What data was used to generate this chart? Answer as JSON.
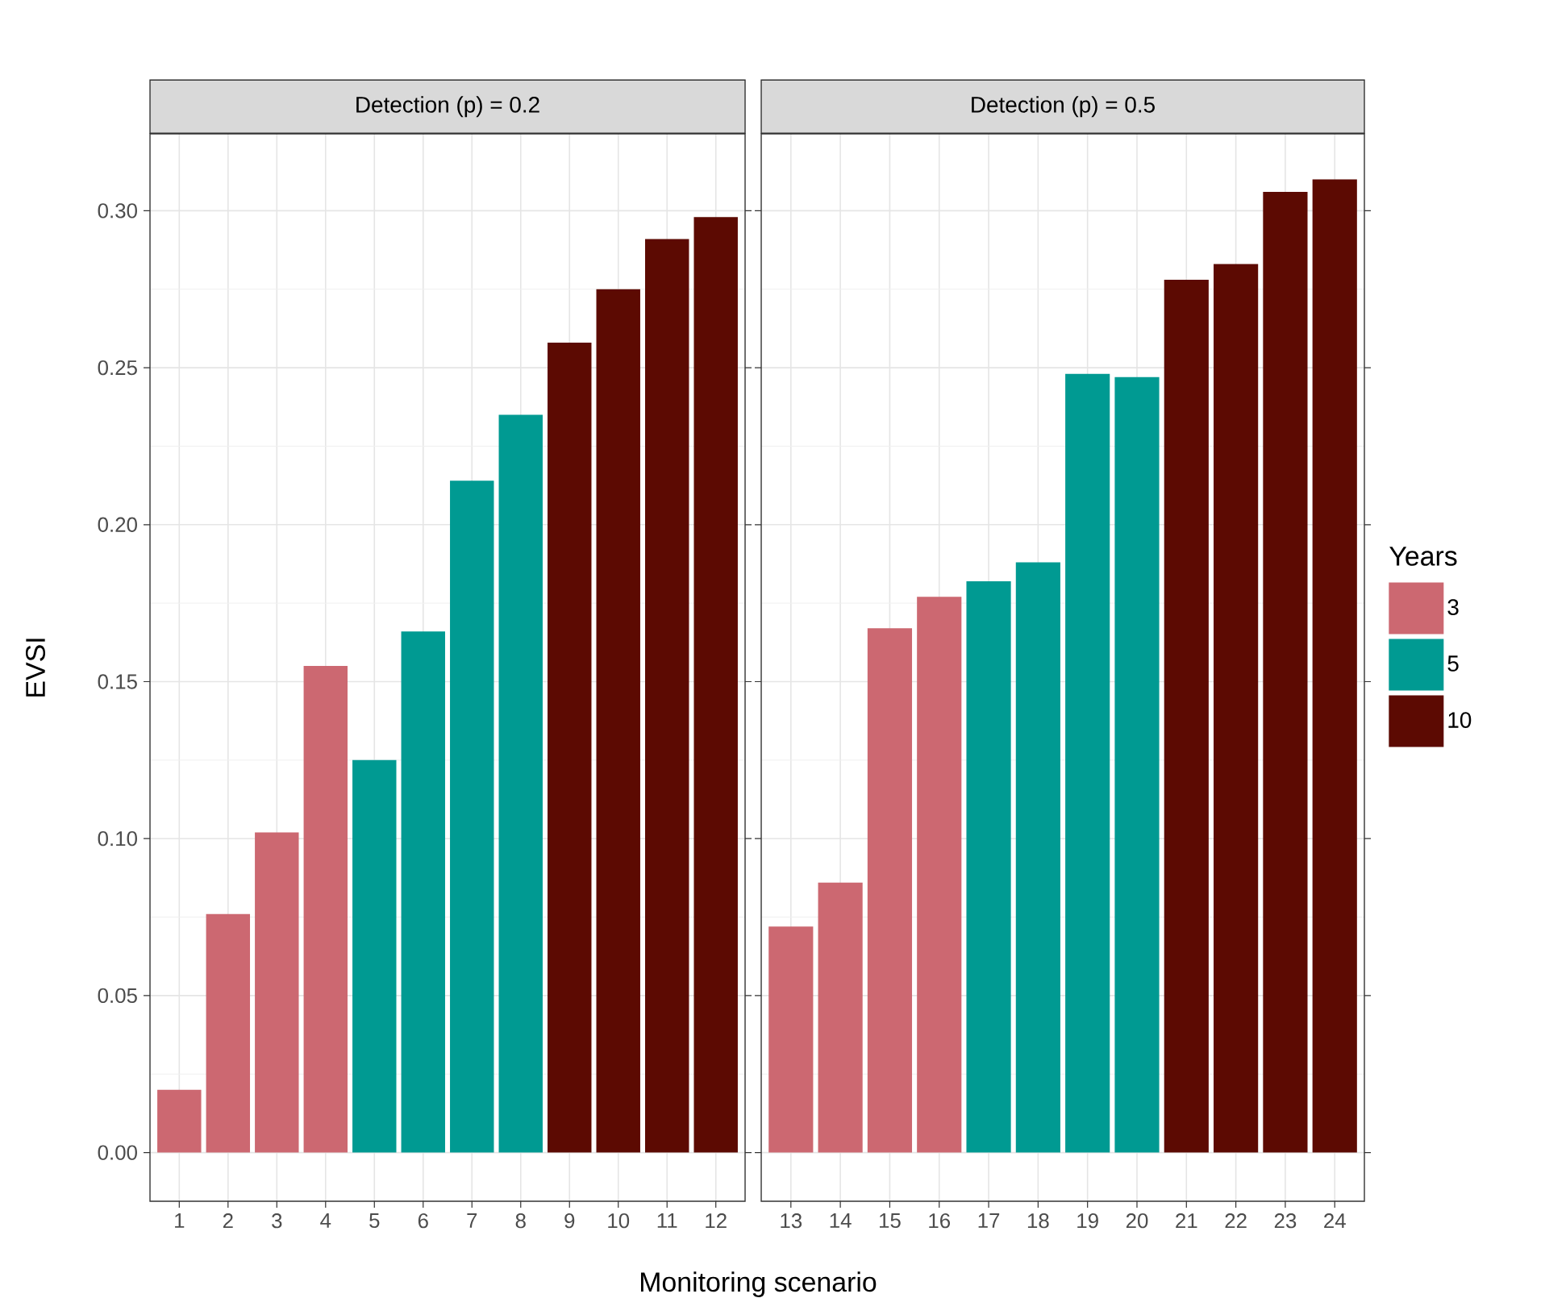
{
  "chart_data": [
    {
      "type": "bar",
      "title": "Detection (p) = 0.2",
      "xlabel": "Monitoring scenario",
      "ylabel": "EVSI",
      "categories": [
        "1",
        "2",
        "3",
        "4",
        "5",
        "6",
        "7",
        "8",
        "9",
        "10",
        "11",
        "12"
      ],
      "series": [
        {
          "color": "#cc6871",
          "values": [
            0.02,
            0.076,
            0.102,
            0.155,
            null,
            null,
            null,
            null,
            null,
            null,
            null,
            null
          ]
        },
        {
          "color": "#009a92",
          "values": [
            null,
            null,
            null,
            null,
            0.125,
            0.166,
            0.214,
            0.235,
            null,
            null,
            null,
            null
          ]
        },
        {
          "color": "#5c0a02",
          "values": [
            null,
            null,
            null,
            null,
            null,
            null,
            null,
            null,
            0.258,
            0.275,
            0.291,
            0.298
          ]
        }
      ],
      "ylim": [
        -0.0155,
        0.3245
      ],
      "yticks": [
        {
          "value": 0,
          "label": "0.00"
        },
        {
          "value": 0.05,
          "label": "0.05"
        },
        {
          "value": 0.1,
          "label": "0.10"
        },
        {
          "value": 0.15,
          "label": "0.15"
        },
        {
          "value": 0.2,
          "label": "0.20"
        },
        {
          "value": 0.25,
          "label": "0.25"
        },
        {
          "value": 0.3,
          "label": "0.30"
        }
      ],
      "grid": true
    },
    {
      "type": "bar",
      "title": "Detection (p) = 0.5",
      "legend_title": "Years",
      "categories": [
        "13",
        "14",
        "15",
        "16",
        "17",
        "18",
        "19",
        "20",
        "21",
        "22",
        "23",
        "24"
      ],
      "series": [
        {
          "name": "3",
          "color": "#cc6871",
          "values": [
            0.072,
            0.086,
            0.167,
            0.177,
            null,
            null,
            null,
            null,
            null,
            null,
            null,
            null
          ]
        },
        {
          "name": "5",
          "color": "#009a92",
          "values": [
            null,
            null,
            null,
            null,
            0.182,
            0.188,
            0.248,
            0.247,
            null,
            null,
            null,
            null
          ]
        },
        {
          "name": "10",
          "color": "#5c0a02",
          "values": [
            null,
            null,
            null,
            null,
            null,
            null,
            null,
            null,
            0.278,
            0.283,
            0.306,
            0.31
          ]
        }
      ],
      "ylim": [
        -0.0155,
        0.3245
      ],
      "yticks": [
        0,
        0.05,
        0.1,
        0.15,
        0.2,
        0.25,
        0.3
      ],
      "tick_labels": "x",
      "grid": true,
      "legend": "right"
    }
  ]
}
